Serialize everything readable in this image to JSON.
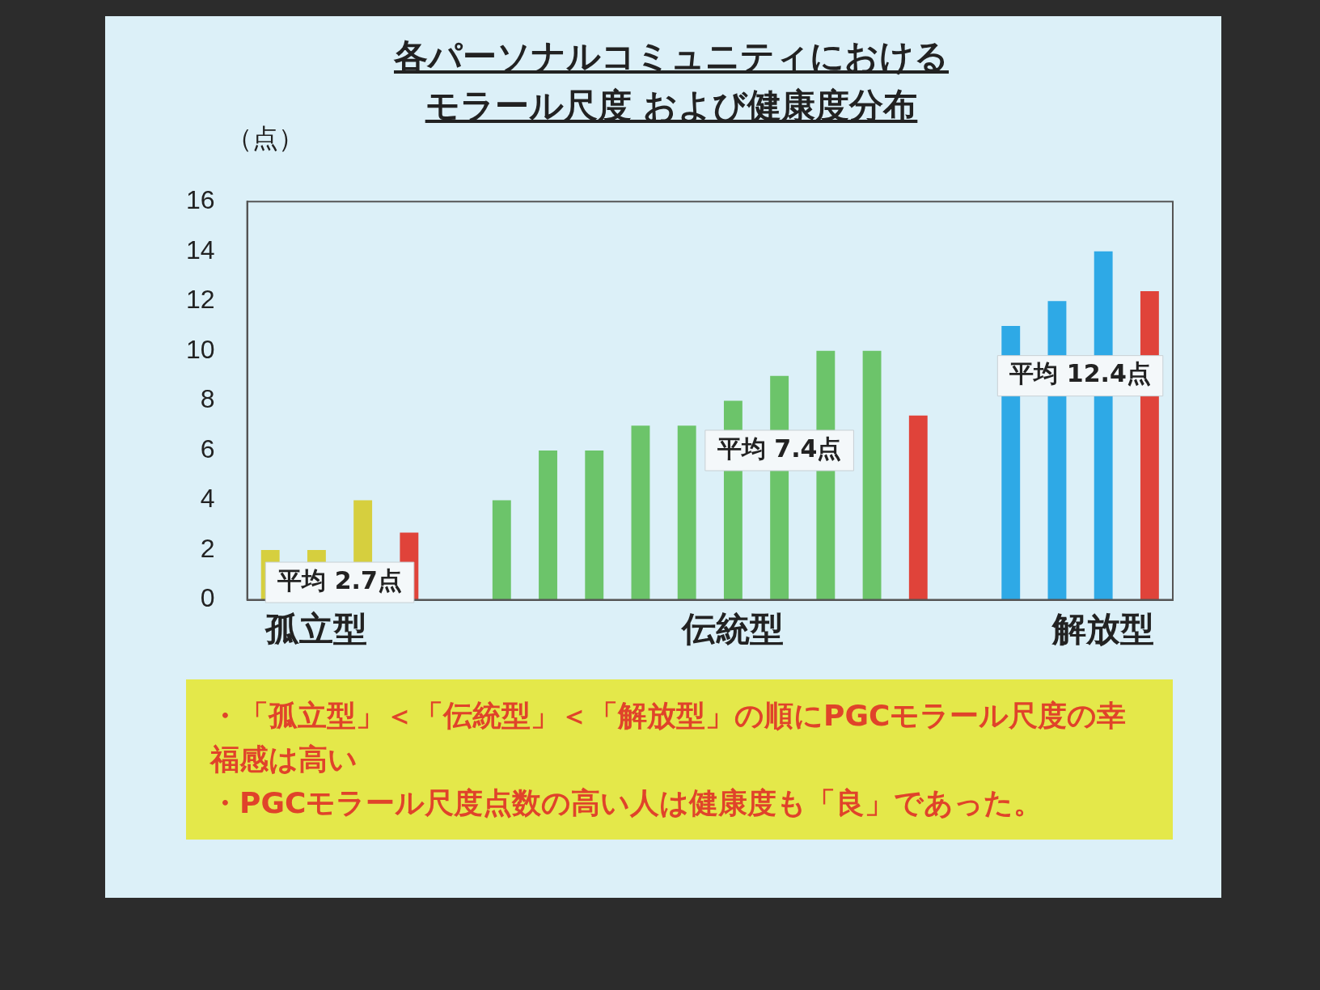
{
  "chart_data": {
    "type": "bar",
    "title": "各パーソナルコミュニティにおけるモラール尺度 および健康度分布",
    "ylabel": "（点）",
    "categories": [
      null,
      "孤立型",
      null,
      null,
      null,
      null,
      null,
      null,
      null,
      null,
      "伝統型",
      null,
      null,
      null,
      null,
      null,
      null,
      null,
      "解放型",
      null
    ],
    "values": [
      2,
      2,
      4,
      2.7,
      null,
      4,
      6,
      6,
      7,
      7,
      8,
      9,
      10,
      10,
      7.4,
      null,
      11,
      12,
      14,
      12.4
    ],
    "colors": [
      "#d6cf3e",
      "#d6cf3e",
      "#d6cf3e",
      "#e0433a",
      "#ffffff",
      "#6cc46a",
      "#6cc46a",
      "#6cc46a",
      "#6cc46a",
      "#6cc46a",
      "#6cc46a",
      "#6cc46a",
      "#6cc46a",
      "#6cc46a",
      "#e0433a",
      "#ffffff",
      "#2ea9e6",
      "#2ea9e6",
      "#2ea9e6",
      "#e0433a"
    ],
    "ylim": [
      0,
      16
    ],
    "yticks": [
      0,
      2,
      4,
      6,
      8,
      10,
      12,
      14,
      16
    ],
    "grid": false,
    "legend": false,
    "annotations": [
      "平均 2.7点",
      "平均 7.4点",
      "平均 12.4点",
      "・「孤立型」＜「伝統型」＜「解放型」の順にPGCモラール尺度の幸福感は高い",
      "・PGCモラール尺度点数の高い人は健康度も「良」であった。"
    ]
  }
}
